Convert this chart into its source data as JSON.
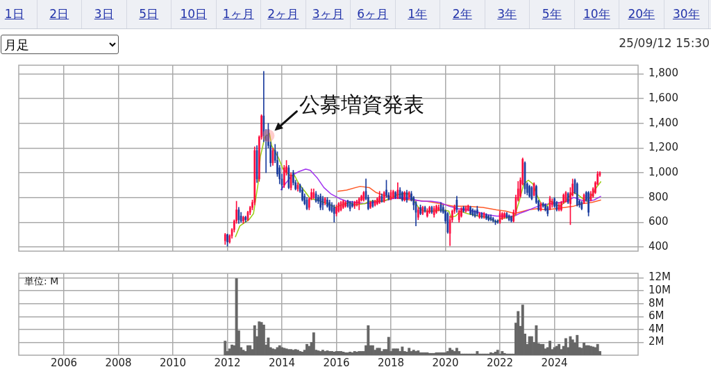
{
  "chart_data": [
    {
      "type": "other",
      "annotations": [
        "1日",
        "2日",
        "3日",
        "5日",
        "10日",
        "1ヶ月",
        "2ヶ月",
        "3ヶ月",
        "6ヶ月",
        "1年",
        "2年",
        "3年",
        "5年",
        "10年",
        "20年",
        "30年"
      ]
    },
    {
      "type": "candlestick",
      "title": "月足",
      "subtitle": "25/09/12 15:30",
      "x": [
        "2011-12",
        "2012-01",
        "2012-02",
        "2012-03",
        "2012-04",
        "2012-05",
        "2012-06",
        "2012-07",
        "2012-08",
        "2012-09",
        "2012-10",
        "2012-11",
        "2012-12",
        "2013-01",
        "2013-02",
        "2013-03",
        "2013-04",
        "2013-05",
        "2013-06",
        "2013-07",
        "2013-08",
        "2013-09",
        "2013-10",
        "2013-11",
        "2013-12",
        "2014-01",
        "2014-02",
        "2014-03",
        "2014-04",
        "2014-05",
        "2014-06",
        "2014-07",
        "2014-08",
        "2014-09",
        "2014-10",
        "2014-11",
        "2014-12",
        "2015-01",
        "2015-02",
        "2015-03",
        "2015-04",
        "2015-05",
        "2015-06",
        "2015-07",
        "2015-08",
        "2015-09",
        "2015-10",
        "2015-11",
        "2015-12",
        "2016-01",
        "2016-02",
        "2016-03",
        "2016-04",
        "2016-05",
        "2016-06",
        "2016-07",
        "2016-08",
        "2016-09",
        "2016-10",
        "2016-11",
        "2016-12",
        "2017-01",
        "2017-02",
        "2017-03",
        "2017-04",
        "2017-05",
        "2017-06",
        "2017-07",
        "2017-08",
        "2017-09",
        "2017-10",
        "2017-11",
        "2017-12",
        "2018-01",
        "2018-02",
        "2018-03",
        "2018-04",
        "2018-05",
        "2018-06",
        "2018-07",
        "2018-08",
        "2018-09",
        "2018-10",
        "2018-11",
        "2018-12",
        "2019-01",
        "2019-02",
        "2019-03",
        "2019-04",
        "2019-05",
        "2019-06",
        "2019-07",
        "2019-08",
        "2019-09",
        "2019-10",
        "2019-11",
        "2019-12",
        "2020-01",
        "2020-02",
        "2020-03",
        "2020-04",
        "2020-05",
        "2020-06",
        "2020-07",
        "2020-08",
        "2020-09",
        "2020-10",
        "2020-11",
        "2020-12",
        "2021-01",
        "2021-02",
        "2021-03",
        "2021-04",
        "2021-05",
        "2021-06",
        "2021-07",
        "2021-08",
        "2021-09",
        "2021-10",
        "2021-11",
        "2021-12",
        "2022-01",
        "2022-02",
        "2022-03",
        "2022-04",
        "2022-05",
        "2022-06",
        "2022-07",
        "2022-08",
        "2022-09",
        "2022-10",
        "2022-11",
        "2022-12",
        "2023-01",
        "2023-02",
        "2023-03",
        "2023-04",
        "2023-05",
        "2023-06",
        "2023-07",
        "2023-08",
        "2023-09",
        "2023-10",
        "2023-11",
        "2023-12",
        "2024-01",
        "2024-02",
        "2024-03",
        "2024-04",
        "2024-05",
        "2024-06",
        "2024-07",
        "2024-08",
        "2024-09",
        "2024-10",
        "2024-11",
        "2024-12",
        "2025-01",
        "2025-02",
        "2025-03",
        "2025-04",
        "2025-05",
        "2025-06",
        "2025-07",
        "2025-08",
        "2025-09"
      ],
      "ohlc": [
        [
          450,
          510,
          420,
          500
        ],
        [
          500,
          505,
          405,
          440
        ],
        [
          440,
          500,
          430,
          490
        ],
        [
          490,
          550,
          470,
          540
        ],
        [
          540,
          620,
          520,
          610
        ],
        [
          610,
          770,
          590,
          700
        ],
        [
          700,
          720,
          590,
          620
        ],
        [
          650,
          680,
          600,
          610
        ],
        [
          610,
          650,
          590,
          640
        ],
        [
          640,
          650,
          600,
          620
        ],
        [
          620,
          690,
          610,
          680
        ],
        [
          680,
          730,
          660,
          720
        ],
        [
          720,
          780,
          700,
          760
        ],
        [
          760,
          1210,
          740,
          1180
        ],
        [
          1180,
          1220,
          920,
          950
        ],
        [
          950,
          1300,
          930,
          1290
        ],
        [
          1290,
          1470,
          1270,
          1460
        ],
        [
          1460,
          1820,
          1250,
          1300
        ],
        [
          1300,
          1350,
          1000,
          1260
        ],
        [
          1350,
          1400,
          1200,
          1220
        ],
        [
          1220,
          1250,
          1050,
          1080
        ],
        [
          1080,
          1200,
          1060,
          1180
        ],
        [
          1180,
          1230,
          1080,
          1100
        ],
        [
          1100,
          1170,
          970,
          990
        ],
        [
          1040,
          1060,
          910,
          950
        ],
        [
          950,
          990,
          860,
          900
        ],
        [
          900,
          1060,
          880,
          1040
        ],
        [
          1000,
          1100,
          980,
          1050
        ],
        [
          1040,
          1060,
          870,
          880
        ],
        [
          880,
          1000,
          860,
          980
        ],
        [
          1000,
          1020,
          900,
          920
        ],
        [
          920,
          940,
          860,
          870
        ],
        [
          870,
          920,
          850,
          900
        ],
        [
          900,
          910,
          840,
          850
        ],
        [
          860,
          880,
          770,
          780
        ],
        [
          810,
          830,
          740,
          750
        ],
        [
          780,
          800,
          700,
          710
        ],
        [
          720,
          800,
          700,
          790
        ],
        [
          790,
          870,
          780,
          840
        ],
        [
          800,
          870,
          790,
          840
        ],
        [
          830,
          850,
          760,
          770
        ],
        [
          800,
          820,
          750,
          770
        ],
        [
          810,
          830,
          700,
          720
        ],
        [
          790,
          810,
          700,
          740
        ],
        [
          760,
          800,
          740,
          790
        ],
        [
          780,
          800,
          720,
          730
        ],
        [
          760,
          780,
          690,
          700
        ],
        [
          740,
          760,
          680,
          690
        ],
        [
          720,
          740,
          600,
          670
        ],
        [
          670,
          740,
          650,
          720
        ],
        [
          690,
          760,
          680,
          750
        ],
        [
          700,
          770,
          690,
          760
        ],
        [
          720,
          780,
          710,
          770
        ],
        [
          730,
          770,
          720,
          760
        ],
        [
          770,
          780,
          720,
          730
        ],
        [
          760,
          770,
          690,
          710
        ],
        [
          750,
          770,
          720,
          730
        ],
        [
          730,
          770,
          710,
          760
        ],
        [
          740,
          780,
          730,
          770
        ],
        [
          750,
          800,
          700,
          790
        ],
        [
          780,
          820,
          770,
          810
        ],
        [
          780,
          850,
          770,
          840
        ],
        [
          850,
          950,
          780,
          790
        ],
        [
          800,
          820,
          700,
          710
        ],
        [
          720,
          770,
          710,
          760
        ],
        [
          770,
          780,
          720,
          730
        ],
        [
          740,
          780,
          730,
          770
        ],
        [
          750,
          800,
          740,
          790
        ],
        [
          760,
          850,
          750,
          810
        ],
        [
          810,
          830,
          760,
          770
        ],
        [
          770,
          850,
          760,
          840
        ],
        [
          860,
          940,
          800,
          820
        ],
        [
          820,
          840,
          780,
          790
        ],
        [
          790,
          860,
          780,
          840
        ],
        [
          800,
          860,
          790,
          850
        ],
        [
          840,
          850,
          790,
          800
        ],
        [
          800,
          920,
          790,
          860
        ],
        [
          860,
          880,
          790,
          800
        ],
        [
          840,
          850,
          770,
          780
        ],
        [
          780,
          850,
          770,
          840
        ],
        [
          840,
          860,
          760,
          780
        ],
        [
          800,
          850,
          790,
          840
        ],
        [
          830,
          850,
          770,
          780
        ],
        [
          800,
          810,
          700,
          740
        ],
        [
          760,
          770,
          570,
          680
        ],
        [
          640,
          720,
          620,
          700
        ],
        [
          720,
          740,
          660,
          670
        ],
        [
          670,
          730,
          660,
          720
        ],
        [
          720,
          730,
          680,
          690
        ],
        [
          650,
          710,
          640,
          690
        ],
        [
          680,
          730,
          670,
          720
        ],
        [
          720,
          730,
          670,
          680
        ],
        [
          660,
          730,
          640,
          710
        ],
        [
          680,
          740,
          670,
          730
        ],
        [
          700,
          740,
          690,
          720
        ],
        [
          740,
          760,
          680,
          690
        ],
        [
          720,
          740,
          670,
          680
        ],
        [
          690,
          700,
          590,
          610
        ],
        [
          670,
          680,
          510,
          520
        ],
        [
          510,
          650,
          410,
          620
        ],
        [
          620,
          700,
          600,
          690
        ],
        [
          690,
          740,
          670,
          720
        ],
        [
          780,
          810,
          680,
          700
        ],
        [
          620,
          700,
          600,
          690
        ],
        [
          650,
          720,
          640,
          710
        ],
        [
          720,
          730,
          680,
          690
        ],
        [
          690,
          730,
          680,
          720
        ],
        [
          700,
          740,
          690,
          730
        ],
        [
          720,
          730,
          660,
          670
        ],
        [
          700,
          710,
          650,
          660
        ],
        [
          690,
          700,
          640,
          650
        ],
        [
          700,
          730,
          650,
          670
        ],
        [
          640,
          680,
          630,
          670
        ],
        [
          670,
          680,
          630,
          640
        ],
        [
          640,
          680,
          630,
          670
        ],
        [
          660,
          670,
          620,
          630
        ],
        [
          650,
          660,
          610,
          620
        ],
        [
          640,
          660,
          610,
          620
        ],
        [
          630,
          640,
          600,
          610
        ],
        [
          610,
          620,
          580,
          600
        ],
        [
          610,
          620,
          590,
          600
        ],
        [
          600,
          690,
          590,
          670
        ],
        [
          630,
          680,
          620,
          670
        ],
        [
          640,
          680,
          630,
          670
        ],
        [
          670,
          680,
          630,
          640
        ],
        [
          650,
          660,
          610,
          620
        ],
        [
          640,
          650,
          600,
          610
        ],
        [
          610,
          700,
          600,
          680
        ],
        [
          680,
          820,
          660,
          800
        ],
        [
          780,
          930,
          770,
          870
        ],
        [
          810,
          960,
          800,
          940
        ],
        [
          910,
          1120,
          900,
          1110
        ],
        [
          1080,
          1090,
          830,
          870
        ],
        [
          910,
          920,
          820,
          840
        ],
        [
          890,
          900,
          800,
          810
        ],
        [
          880,
          890,
          780,
          790
        ],
        [
          820,
          920,
          810,
          910
        ],
        [
          890,
          900,
          750,
          760
        ],
        [
          770,
          780,
          690,
          700
        ],
        [
          700,
          760,
          690,
          750
        ],
        [
          750,
          760,
          720,
          730
        ],
        [
          740,
          750,
          690,
          700
        ],
        [
          720,
          730,
          650,
          670
        ],
        [
          710,
          810,
          700,
          790
        ],
        [
          740,
          790,
          720,
          770
        ],
        [
          790,
          800,
          720,
          730
        ],
        [
          760,
          770,
          690,
          700
        ],
        [
          700,
          760,
          690,
          740
        ],
        [
          700,
          770,
          690,
          760
        ],
        [
          760,
          830,
          750,
          820
        ],
        [
          770,
          850,
          760,
          840
        ],
        [
          830,
          840,
          750,
          760
        ],
        [
          750,
          880,
          580,
          840
        ],
        [
          820,
          950,
          810,
          910
        ],
        [
          940,
          950,
          830,
          840
        ],
        [
          910,
          920,
          730,
          740
        ],
        [
          770,
          780,
          720,
          740
        ],
        [
          760,
          770,
          700,
          710
        ],
        [
          760,
          830,
          750,
          820
        ],
        [
          840,
          850,
          770,
          780
        ],
        [
          840,
          850,
          650,
          680
        ],
        [
          780,
          850,
          770,
          830
        ],
        [
          810,
          880,
          800,
          870
        ],
        [
          840,
          930,
          830,
          920
        ],
        [
          910,
          1010,
          900,
          990
        ],
        [
          980,
          1010,
          970,
          1000
        ]
      ],
      "colors": [
        "#ff0a3c",
        "#1a3c9e",
        "#ff0a3c",
        "#ff0a3c",
        "#ff0a3c",
        "#ff0a3c",
        "#1a3c9e",
        "#1a3c9e",
        "#ff0a3c",
        "#1a3c9e",
        "#ff0a3c",
        "#ff0a3c",
        "#ff0a3c",
        "#ff0a3c",
        "#1a3c9e",
        "#ff0a3c",
        "#ff0a3c",
        "#1a3c9e",
        "#1a3c9e",
        "#1a3c9e",
        "#1a3c9e",
        "#ff0a3c",
        "#1a3c9e",
        "#1a3c9e",
        "#1a3c9e",
        "#1a3c9e",
        "#ff0a3c",
        "#ff0a3c",
        "#1a3c9e",
        "#ff0a3c",
        "#1a3c9e",
        "#1a3c9e",
        "#ff0a3c",
        "#1a3c9e",
        "#1a3c9e",
        "#1a3c9e",
        "#1a3c9e",
        "#ff0a3c",
        "#ff0a3c",
        "#ff0a3c",
        "#1a3c9e",
        "#1a3c9e",
        "#1a3c9e",
        "#1a3c9e",
        "#ff0a3c",
        "#1a3c9e",
        "#1a3c9e",
        "#1a3c9e",
        "#1a3c9e",
        "#ff0a3c",
        "#ff0a3c",
        "#ff0a3c",
        "#ff0a3c",
        "#ff0a3c",
        "#1a3c9e",
        "#1a3c9e",
        "#1a3c9e",
        "#ff0a3c",
        "#ff0a3c",
        "#ff0a3c",
        "#ff0a3c",
        "#ff0a3c",
        "#1a3c9e",
        "#1a3c9e",
        "#ff0a3c",
        "#1a3c9e",
        "#ff0a3c",
        "#ff0a3c",
        "#ff0a3c",
        "#1a3c9e",
        "#ff0a3c",
        "#1a3c9e",
        "#1a3c9e",
        "#ff0a3c",
        "#ff0a3c",
        "#1a3c9e",
        "#ff0a3c",
        "#1a3c9e",
        "#1a3c9e",
        "#ff0a3c",
        "#1a3c9e",
        "#ff0a3c",
        "#1a3c9e",
        "#1a3c9e",
        "#1a3c9e",
        "#ff0a3c",
        "#1a3c9e",
        "#ff0a3c",
        "#1a3c9e",
        "#ff0a3c",
        "#ff0a3c",
        "#1a3c9e",
        "#ff0a3c",
        "#ff0a3c",
        "#ff0a3c",
        "#1a3c9e",
        "#1a3c9e",
        "#1a3c9e",
        "#1a3c9e",
        "#ff0a3c",
        "#ff0a3c",
        "#ff0a3c",
        "#1a3c9e",
        "#ff0a3c",
        "#ff0a3c",
        "#1a3c9e",
        "#ff0a3c",
        "#ff0a3c",
        "#1a3c9e",
        "#1a3c9e",
        "#1a3c9e",
        "#1a3c9e",
        "#ff0a3c",
        "#1a3c9e",
        "#ff0a3c",
        "#1a3c9e",
        "#1a3c9e",
        "#1a3c9e",
        "#1a3c9e",
        "#1a3c9e",
        "#1a3c9e",
        "#ff0a3c",
        "#ff0a3c",
        "#ff0a3c",
        "#1a3c9e",
        "#1a3c9e",
        "#1a3c9e",
        "#ff0a3c",
        "#ff0a3c",
        "#ff0a3c",
        "#ff0a3c",
        "#ff0a3c",
        "#1a3c9e",
        "#1a3c9e",
        "#1a3c9e",
        "#1a3c9e",
        "#ff0a3c",
        "#1a3c9e",
        "#1a3c9e",
        "#ff0a3c",
        "#1a3c9e",
        "#1a3c9e",
        "#1a3c9e",
        "#ff0a3c",
        "#ff0a3c",
        "#1a3c9e",
        "#1a3c9e",
        "#ff0a3c",
        "#ff0a3c",
        "#ff0a3c",
        "#ff0a3c",
        "#1a3c9e",
        "#ff0a3c",
        "#ff0a3c",
        "#1a3c9e",
        "#1a3c9e",
        "#1a3c9e",
        "#1a3c9e",
        "#ff0a3c",
        "#1a3c9e",
        "#1a3c9e",
        "#ff0a3c",
        "#ff0a3c",
        "#ff0a3c",
        "#ff0a3c",
        "#ff0a3c"
      ],
      "series": [
        {
          "type": "line",
          "color": "#99cc11",
          "x": [
            "2012-04-16",
            "2012-06-16",
            "2012-10-16",
            "2012-12-16",
            "2013-02-16",
            "2013-03-16",
            "2013-05-16",
            "2013-07-16",
            "2013-08-16",
            "2013-11-16",
            "2014-01-16",
            "2014-04-16",
            "2014-06-16",
            "2014-08-16",
            "2014-11-16",
            "2015-01-16",
            "2015-04-16",
            "2015-07-16",
            "2015-10-16",
            "2015-12-16",
            "2016-03-16",
            "2016-06-16",
            "2016-09-16",
            "2017-01-16",
            "2017-03-16",
            "2017-06-16",
            "2017-09-16",
            "2017-12-16",
            "2018-03-16",
            "2018-06-16",
            "2018-08-16",
            "2018-10-16",
            "2019-01-16",
            "2019-03-16",
            "2019-07-16",
            "2019-11-16",
            "2020-02-16",
            "2020-03-16",
            "2020-05-16",
            "2020-07-16",
            "2020-10-16",
            "2021-03-16",
            "2021-07-16",
            "2021-11-16",
            "2022-01-16",
            "2022-05-16",
            "2022-07-16",
            "2022-09-16",
            "2022-11-16",
            "2023-01-16",
            "2023-03-16",
            "2023-05-16",
            "2023-07-16",
            "2023-09-16",
            "2023-11-16",
            "2024-01-16",
            "2024-03-16",
            "2024-05-16",
            "2024-07-16",
            "2024-09-16",
            "2024-11-16",
            "2025-01-16",
            "2025-03-16",
            "2025-05-16",
            "2025-07-16",
            "2025-09-16"
          ],
          "values": [
            480,
            570,
            620,
            670,
            910,
            1130,
            1290,
            1320,
            1220,
            1120,
            1030,
            980,
            980,
            910,
            840,
            790,
            780,
            760,
            740,
            720,
            740,
            760,
            740,
            750,
            770,
            770,
            770,
            790,
            820,
            830,
            830,
            790,
            710,
            690,
            690,
            700,
            690,
            640,
            650,
            690,
            670,
            650,
            640,
            600,
            630,
            640,
            650,
            770,
            910,
            940,
            910,
            810,
            740,
            730,
            770,
            740,
            730,
            760,
            810,
            840,
            820,
            790,
            770,
            820,
            880,
            930
          ]
        },
        {
          "type": "line",
          "color": "#a030f0",
          "x": [
            "2013-12-16",
            "2014-02-16",
            "2014-05-16",
            "2014-08-16",
            "2014-11-16",
            "2015-01-16",
            "2015-04-16",
            "2015-07-16",
            "2015-10-16",
            "2016-02-16",
            "2016-05-16",
            "2016-09-16",
            "2017-01-16",
            "2017-05-16",
            "2017-09-16",
            "2018-01-16",
            "2018-05-16",
            "2018-09-16",
            "2019-02-16",
            "2019-06-16",
            "2019-10-16",
            "2020-02-16",
            "2020-06-16",
            "2020-10-16",
            "2021-03-16",
            "2021-07-16",
            "2021-11-16",
            "2022-03-16",
            "2022-07-16",
            "2022-09-16",
            "2022-12-16",
            "2023-04-16",
            "2023-07-16",
            "2023-11-16",
            "2024-03-16",
            "2024-06-16",
            "2024-09-16",
            "2024-12-16",
            "2025-03-16",
            "2025-06-16",
            "2025-09-16"
          ],
          "values": [
            860,
            910,
            980,
            1010,
            1030,
            1020,
            960,
            880,
            830,
            790,
            770,
            760,
            750,
            760,
            770,
            790,
            800,
            790,
            770,
            770,
            760,
            730,
            710,
            700,
            680,
            660,
            650,
            650,
            650,
            670,
            690,
            720,
            740,
            750,
            760,
            770,
            800,
            780,
            770,
            780,
            810
          ]
        },
        {
          "type": "line",
          "color": "#ff5a28",
          "x": [
            "2016-01-16",
            "2016-05-16",
            "2016-11-16",
            "2017-03-16",
            "2017-06-16",
            "2017-09-16",
            "2018-01-16",
            "2018-05-16",
            "2018-09-16",
            "2019-04-16",
            "2019-10-16",
            "2020-04-16",
            "2020-10-16",
            "2021-05-16",
            "2021-11-16",
            "2022-03-16",
            "2022-07-16",
            "2022-09-16",
            "2023-01-16",
            "2023-05-16",
            "2023-09-16",
            "2024-01-16",
            "2024-05-16",
            "2024-09-16",
            "2025-01-16",
            "2025-05-16",
            "2025-09-16"
          ],
          "values": [
            850,
            860,
            890,
            880,
            840,
            820,
            800,
            790,
            780,
            770,
            750,
            730,
            730,
            720,
            700,
            690,
            670,
            680,
            700,
            710,
            700,
            710,
            720,
            730,
            750,
            760,
            780
          ]
        }
      ],
      "annotations": [
        {
          "text": "公募増資発表",
          "x": "2013-07",
          "y": 1300
        }
      ],
      "xlim": [
        "2004-05-05",
        "2027-01-26"
      ],
      "xticks": [
        "2006",
        "2008",
        "2010",
        "2012",
        "2014",
        "2016",
        "2018",
        "2020",
        "2022",
        "2024"
      ],
      "ylim": [
        366,
        1870
      ],
      "yticks": [
        400,
        600,
        800,
        {
          "value": 1000,
          "label": "1,000"
        },
        {
          "value": 1200,
          "label": "1,200"
        },
        {
          "value": 1400,
          "label": "1,400"
        },
        {
          "value": 1600,
          "label": "1,600"
        },
        {
          "value": 1800,
          "label": "1,800"
        }
      ],
      "grid": true,
      "tick_labels": "y"
    },
    {
      "type": "bar",
      "ylabel": "単位: M",
      "color": "#666666",
      "x": [
        "2011-12",
        "2012-01",
        "2012-02",
        "2012-03",
        "2012-04",
        "2012-05",
        "2012-06",
        "2012-07",
        "2012-08",
        "2012-09",
        "2012-10",
        "2012-11",
        "2012-12",
        "2013-01",
        "2013-02",
        "2013-03",
        "2013-04",
        "2013-05",
        "2013-06",
        "2013-07",
        "2013-08",
        "2013-09",
        "2013-10",
        "2013-11",
        "2013-12",
        "2014-01",
        "2014-02",
        "2014-03",
        "2014-04",
        "2014-05",
        "2014-06",
        "2014-07",
        "2014-08",
        "2014-09",
        "2014-10",
        "2014-11",
        "2014-12",
        "2015-01",
        "2015-02",
        "2015-03",
        "2015-04",
        "2015-05",
        "2015-06",
        "2015-07",
        "2015-08",
        "2015-09",
        "2015-10",
        "2015-11",
        "2015-12",
        "2016-01",
        "2016-02",
        "2016-03",
        "2016-04",
        "2016-05",
        "2016-06",
        "2016-07",
        "2016-08",
        "2016-09",
        "2016-10",
        "2016-11",
        "2016-12",
        "2017-01",
        "2017-02",
        "2017-03",
        "2017-04",
        "2017-05",
        "2017-06",
        "2017-07",
        "2017-08",
        "2017-09",
        "2017-10",
        "2017-11",
        "2017-12",
        "2018-01",
        "2018-02",
        "2018-03",
        "2018-04",
        "2018-05",
        "2018-06",
        "2018-07",
        "2018-08",
        "2018-09",
        "2018-10",
        "2018-11",
        "2018-12",
        "2019-01",
        "2019-02",
        "2019-03",
        "2019-04",
        "2019-05",
        "2019-06",
        "2019-07",
        "2019-08",
        "2019-09",
        "2019-10",
        "2019-11",
        "2019-12",
        "2020-01",
        "2020-02",
        "2020-03",
        "2020-04",
        "2020-05",
        "2020-06",
        "2020-07",
        "2020-08",
        "2020-09",
        "2020-10",
        "2020-11",
        "2020-12",
        "2021-01",
        "2021-02",
        "2021-03",
        "2021-04",
        "2021-05",
        "2021-06",
        "2021-07",
        "2021-08",
        "2021-09",
        "2021-10",
        "2021-11",
        "2021-12",
        "2022-01",
        "2022-02",
        "2022-03",
        "2022-04",
        "2022-05",
        "2022-06",
        "2022-07",
        "2022-08",
        "2022-09",
        "2022-10",
        "2022-11",
        "2022-12",
        "2023-01",
        "2023-02",
        "2023-03",
        "2023-04",
        "2023-05",
        "2023-06",
        "2023-07",
        "2023-08",
        "2023-09",
        "2023-10",
        "2023-11",
        "2023-12",
        "2024-01",
        "2024-02",
        "2024-03",
        "2024-04",
        "2024-05",
        "2024-06",
        "2024-07",
        "2024-08",
        "2024-09",
        "2024-10",
        "2024-11",
        "2024-12",
        "2025-01",
        "2025-02",
        "2025-03",
        "2025-04",
        "2025-05",
        "2025-06",
        "2025-07",
        "2025-08",
        "2025-09"
      ],
      "values": [
        2.2,
        0.6,
        1.0,
        1.6,
        1.5,
        11.9,
        3.8,
        1.2,
        0.8,
        0.6,
        1.5,
        1.5,
        0.9,
        4.6,
        2.9,
        5.2,
        5.1,
        4.7,
        1.6,
        2.7,
        1.2,
        1.0,
        0.9,
        1.2,
        1.5,
        1.2,
        1.1,
        1.0,
        0.9,
        0.9,
        0.8,
        0.9,
        0.8,
        0.6,
        0.5,
        0.8,
        1.7,
        1.4,
        2.0,
        3.5,
        0.8,
        0.7,
        0.6,
        0.8,
        0.6,
        0.7,
        0.6,
        0.6,
        0.5,
        0.6,
        0.6,
        0.6,
        0.5,
        0.4,
        0.4,
        0.5,
        0.4,
        0.6,
        0.5,
        0.6,
        0.6,
        0.6,
        1.5,
        4.6,
        1.5,
        1.5,
        0.8,
        1.1,
        1.1,
        0.6,
        0.9,
        0.9,
        2.8,
        0.6,
        1.0,
        1.0,
        1.0,
        0.6,
        1.3,
        0.6,
        0.5,
        1.1,
        0.6,
        0.8,
        0.6,
        0.7,
        0.4,
        0.4,
        0.4,
        0.4,
        0.3,
        0.3,
        0.3,
        0.4,
        0.4,
        0.4,
        0.4,
        0.4,
        0.6,
        1.1,
        0.8,
        0.6,
        1.1,
        0.6,
        0.2,
        0.2,
        0.2,
        0.2,
        0.2,
        0.2,
        0.2,
        0.6,
        0.2,
        0.2,
        0.2,
        0.2,
        0.2,
        0.4,
        0.3,
        0.5,
        0.8,
        0.2,
        0.6,
        0.3,
        0.2,
        0.2,
        0.2,
        0.2,
        5.0,
        6.8,
        4.5,
        7.8,
        3.3,
        1.7,
        2.9,
        2.9,
        2.0,
        4.6,
        1.8,
        1.7,
        1.7,
        1.0,
        1.2,
        2.2,
        0.9,
        1.2,
        1.4,
        1.7,
        0.9,
        1.4,
        2.6,
        1.2,
        2.9,
        2.4,
        1.9,
        3.1,
        1.2,
        1.1,
        1.9,
        1.5,
        1.5,
        1.4,
        1.3,
        1.2,
        1.7,
        0.6
      ],
      "xlim": [
        "2004-05-05",
        "2027-01-26"
      ],
      "xticks": [
        "2006",
        "2008",
        "2010",
        "2012",
        "2014",
        "2016",
        "2018",
        "2020",
        "2022",
        "2024"
      ],
      "ylim": [
        0,
        12.7
      ],
      "yticks": [
        {
          "value": 2,
          "label": "2M"
        },
        {
          "value": 4,
          "label": "4M"
        },
        {
          "value": 6,
          "label": "6M"
        },
        {
          "value": 8,
          "label": "8M"
        },
        {
          "value": 10,
          "label": "10M"
        },
        {
          "value": 12,
          "label": "12M"
        }
      ],
      "grid": true
    }
  ]
}
